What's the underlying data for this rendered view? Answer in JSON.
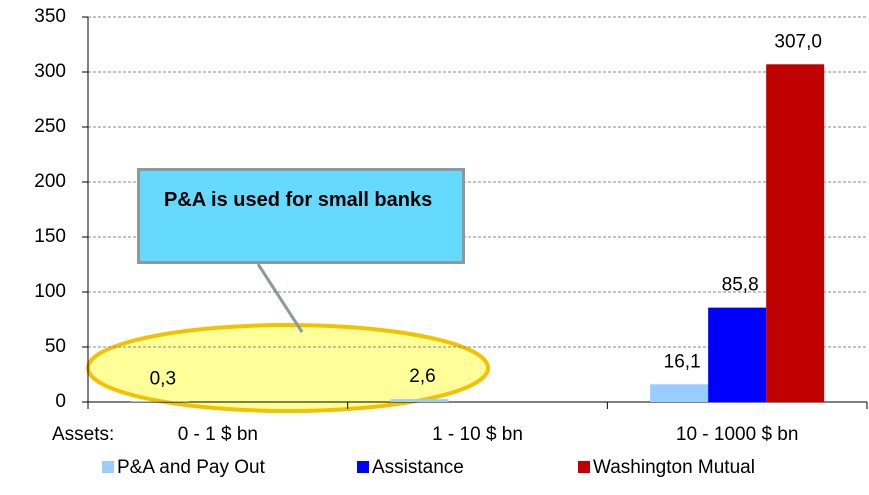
{
  "chart_data": {
    "type": "bar",
    "categories": [
      "0 - 1 $ bn",
      "1 - 10 $ bn",
      "10 - 1000 $ bn"
    ],
    "x_label": "Assets:",
    "series": [
      {
        "name": "P&A and Pay Out",
        "color": "#99ccff",
        "values": [
          0.3,
          2.6,
          16.1
        ],
        "value_labels": [
          "0,3",
          "2,6",
          "16,1"
        ]
      },
      {
        "name": "Assistance",
        "color": "#0000ff",
        "values": [
          null,
          null,
          85.8
        ],
        "value_labels": [
          null,
          null,
          "85,8"
        ]
      },
      {
        "name": "Washington Mutual",
        "color": "#c00000",
        "values": [
          null,
          null,
          307.0
        ],
        "value_labels": [
          null,
          null,
          "307,0"
        ]
      }
    ],
    "ylim": [
      0,
      350
    ],
    "yticks": [
      0,
      50,
      100,
      150,
      200,
      250,
      300,
      350
    ],
    "grid": true,
    "legend": "bottom",
    "annotation": "P&A is used for small banks"
  }
}
